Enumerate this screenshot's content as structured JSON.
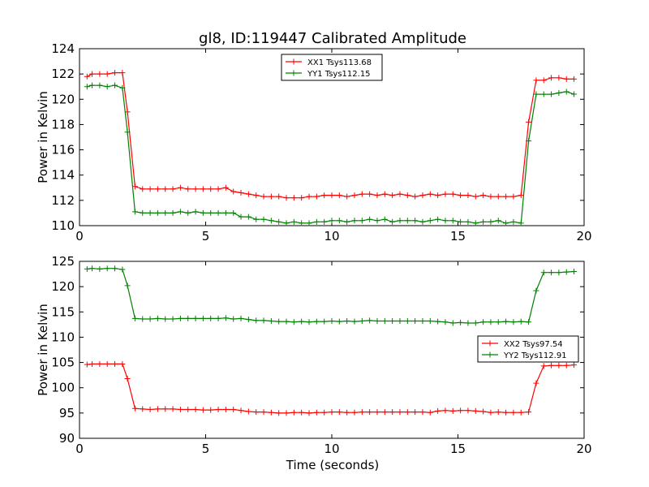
{
  "figure": {
    "title": "gl8, ID:119447 Calibrated Amplitude",
    "xlabel": "Time (seconds)"
  },
  "chart_data": [
    {
      "type": "line",
      "title": "gl8, ID:119447 Calibrated Amplitude",
      "xlabel": "",
      "ylabel": "Power in Kelvin",
      "xlim": [
        0,
        20
      ],
      "ylim": [
        110,
        124
      ],
      "xticks": [
        0,
        5,
        10,
        15,
        20
      ],
      "yticks": [
        110,
        112,
        114,
        116,
        118,
        120,
        122,
        124
      ],
      "legend_position": "top-center",
      "marker": "+",
      "grid": false,
      "series": [
        {
          "name": "XX1 Tsys113.68",
          "color": "#ff0000",
          "x": [
            0.3,
            0.5,
            0.8,
            1.1,
            1.4,
            1.7,
            1.9,
            2.2,
            2.5,
            2.8,
            3.1,
            3.4,
            3.7,
            4.0,
            4.3,
            4.6,
            4.9,
            5.2,
            5.5,
            5.8,
            6.1,
            6.4,
            6.7,
            7.0,
            7.3,
            7.6,
            7.9,
            8.2,
            8.5,
            8.8,
            9.1,
            9.4,
            9.7,
            10.0,
            10.3,
            10.6,
            10.9,
            11.2,
            11.5,
            11.8,
            12.1,
            12.4,
            12.7,
            13.0,
            13.3,
            13.6,
            13.9,
            14.2,
            14.5,
            14.8,
            15.1,
            15.4,
            15.7,
            16.0,
            16.3,
            16.6,
            16.9,
            17.2,
            17.5,
            17.8,
            18.1,
            18.4,
            18.7,
            19.0,
            19.3,
            19.6
          ],
          "y": [
            121.8,
            122.0,
            122.0,
            122.0,
            122.1,
            122.1,
            119.0,
            113.1,
            112.9,
            112.9,
            112.9,
            112.9,
            112.9,
            113.0,
            112.9,
            112.9,
            112.9,
            112.9,
            112.9,
            113.0,
            112.7,
            112.6,
            112.5,
            112.4,
            112.3,
            112.3,
            112.3,
            112.2,
            112.2,
            112.2,
            112.3,
            112.3,
            112.4,
            112.4,
            112.4,
            112.3,
            112.4,
            112.5,
            112.5,
            112.4,
            112.5,
            112.4,
            112.5,
            112.4,
            112.3,
            112.4,
            112.5,
            112.4,
            112.5,
            112.5,
            112.4,
            112.4,
            112.3,
            112.4,
            112.3,
            112.3,
            112.3,
            112.3,
            112.4,
            118.2,
            121.5,
            121.5,
            121.7,
            121.7,
            121.6,
            121.6
          ]
        },
        {
          "name": "YY1 Tsys112.15",
          "color": "#008000",
          "x": [
            0.3,
            0.5,
            0.8,
            1.1,
            1.4,
            1.7,
            1.9,
            2.2,
            2.5,
            2.8,
            3.1,
            3.4,
            3.7,
            4.0,
            4.3,
            4.6,
            4.9,
            5.2,
            5.5,
            5.8,
            6.1,
            6.4,
            6.7,
            7.0,
            7.3,
            7.6,
            7.9,
            8.2,
            8.5,
            8.8,
            9.1,
            9.4,
            9.7,
            10.0,
            10.3,
            10.6,
            10.9,
            11.2,
            11.5,
            11.8,
            12.1,
            12.4,
            12.7,
            13.0,
            13.3,
            13.6,
            13.9,
            14.2,
            14.5,
            14.8,
            15.1,
            15.4,
            15.7,
            16.0,
            16.3,
            16.6,
            16.9,
            17.2,
            17.5,
            17.8,
            18.1,
            18.4,
            18.7,
            19.0,
            19.3,
            19.6
          ],
          "y": [
            121.0,
            121.1,
            121.1,
            121.0,
            121.1,
            120.9,
            117.4,
            111.1,
            111.0,
            111.0,
            111.0,
            111.0,
            111.0,
            111.1,
            111.0,
            111.1,
            111.0,
            111.0,
            111.0,
            111.0,
            111.0,
            110.7,
            110.7,
            110.5,
            110.5,
            110.4,
            110.3,
            110.2,
            110.3,
            110.2,
            110.2,
            110.3,
            110.3,
            110.4,
            110.4,
            110.3,
            110.4,
            110.4,
            110.5,
            110.4,
            110.5,
            110.3,
            110.4,
            110.4,
            110.4,
            110.3,
            110.4,
            110.5,
            110.4,
            110.4,
            110.3,
            110.3,
            110.2,
            110.3,
            110.3,
            110.4,
            110.2,
            110.3,
            110.2,
            116.7,
            120.4,
            120.4,
            120.4,
            120.5,
            120.6,
            120.4
          ]
        }
      ]
    },
    {
      "type": "line",
      "title": "",
      "xlabel": "Time (seconds)",
      "ylabel": "Power in Kelvin",
      "xlim": [
        0,
        20
      ],
      "ylim": [
        90,
        125
      ],
      "xticks": [
        0,
        5,
        10,
        15,
        20
      ],
      "yticks": [
        90,
        95,
        100,
        105,
        110,
        115,
        120,
        125
      ],
      "legend_position": "center-right",
      "marker": "+",
      "grid": false,
      "series": [
        {
          "name": "XX2 Tsys97.54",
          "color": "#ff0000",
          "x": [
            0.3,
            0.5,
            0.8,
            1.1,
            1.4,
            1.7,
            1.9,
            2.2,
            2.5,
            2.8,
            3.1,
            3.4,
            3.7,
            4.0,
            4.3,
            4.6,
            4.9,
            5.2,
            5.5,
            5.8,
            6.1,
            6.4,
            6.7,
            7.0,
            7.3,
            7.6,
            7.9,
            8.2,
            8.5,
            8.8,
            9.1,
            9.4,
            9.7,
            10.0,
            10.3,
            10.6,
            10.9,
            11.2,
            11.5,
            11.8,
            12.1,
            12.4,
            12.7,
            13.0,
            13.3,
            13.6,
            13.9,
            14.2,
            14.5,
            14.8,
            15.1,
            15.4,
            15.7,
            16.0,
            16.3,
            16.6,
            16.9,
            17.2,
            17.5,
            17.8,
            18.1,
            18.4,
            18.7,
            19.0,
            19.3,
            19.6
          ],
          "y": [
            104.6,
            104.7,
            104.7,
            104.7,
            104.7,
            104.7,
            101.8,
            95.9,
            95.8,
            95.7,
            95.8,
            95.8,
            95.8,
            95.7,
            95.7,
            95.7,
            95.6,
            95.6,
            95.7,
            95.7,
            95.7,
            95.5,
            95.3,
            95.2,
            95.2,
            95.1,
            95.0,
            95.0,
            95.1,
            95.1,
            95.0,
            95.1,
            95.1,
            95.2,
            95.2,
            95.1,
            95.1,
            95.2,
            95.2,
            95.2,
            95.2,
            95.2,
            95.2,
            95.2,
            95.2,
            95.2,
            95.1,
            95.4,
            95.5,
            95.4,
            95.5,
            95.5,
            95.4,
            95.3,
            95.1,
            95.2,
            95.1,
            95.1,
            95.1,
            95.2,
            100.9,
            104.3,
            104.4,
            104.4,
            104.4,
            104.5
          ]
        },
        {
          "name": "YY2 Tsys112.91",
          "color": "#008000",
          "x": [
            0.3,
            0.5,
            0.8,
            1.1,
            1.4,
            1.7,
            1.9,
            2.2,
            2.5,
            2.8,
            3.1,
            3.4,
            3.7,
            4.0,
            4.3,
            4.6,
            4.9,
            5.2,
            5.5,
            5.8,
            6.1,
            6.4,
            6.7,
            7.0,
            7.3,
            7.6,
            7.9,
            8.2,
            8.5,
            8.8,
            9.1,
            9.4,
            9.7,
            10.0,
            10.3,
            10.6,
            10.9,
            11.2,
            11.5,
            11.8,
            12.1,
            12.4,
            12.7,
            13.0,
            13.3,
            13.6,
            13.9,
            14.2,
            14.5,
            14.8,
            15.1,
            15.4,
            15.7,
            16.0,
            16.3,
            16.6,
            16.9,
            17.2,
            17.5,
            17.8,
            18.1,
            18.4,
            18.7,
            19.0,
            19.3,
            19.6
          ],
          "y": [
            123.5,
            123.6,
            123.5,
            123.6,
            123.6,
            123.4,
            120.2,
            113.7,
            113.6,
            113.6,
            113.7,
            113.6,
            113.6,
            113.7,
            113.7,
            113.7,
            113.7,
            113.7,
            113.7,
            113.8,
            113.6,
            113.7,
            113.5,
            113.3,
            113.3,
            113.2,
            113.1,
            113.1,
            113.0,
            113.1,
            113.0,
            113.1,
            113.1,
            113.2,
            113.1,
            113.2,
            113.1,
            113.2,
            113.3,
            113.2,
            113.2,
            113.2,
            113.2,
            113.2,
            113.2,
            113.2,
            113.2,
            113.1,
            113.0,
            112.8,
            112.9,
            112.8,
            112.8,
            113.0,
            113.0,
            113.0,
            113.1,
            113.0,
            113.1,
            113.0,
            119.2,
            122.8,
            122.8,
            122.8,
            122.9,
            123.0
          ]
        }
      ]
    }
  ]
}
